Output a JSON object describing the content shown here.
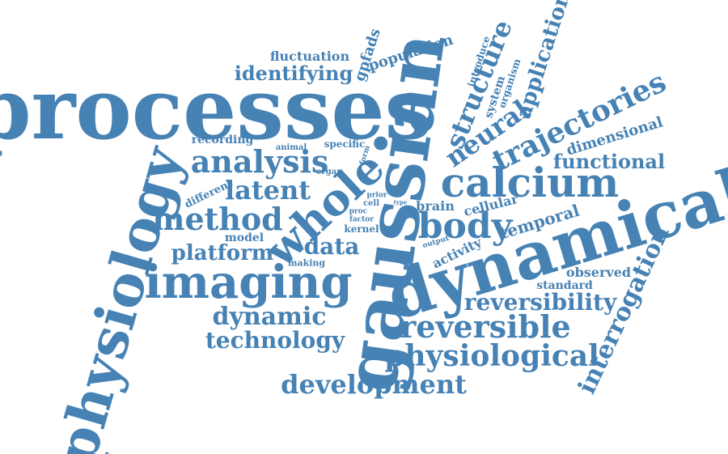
{
  "cloud": {
    "color": "#4682B4",
    "background": "#ffffff",
    "words": [
      {
        "id": "processes",
        "text": "processes"
      },
      {
        "id": "gaussian",
        "text": "gaussian"
      },
      {
        "id": "dynamical",
        "text": "dynamical"
      },
      {
        "id": "physiology",
        "text": "physiology"
      },
      {
        "id": "imaging",
        "text": "imaging"
      },
      {
        "id": "whole",
        "text": "whole"
      },
      {
        "id": "calcium",
        "text": "calcium"
      },
      {
        "id": "body",
        "text": "body"
      },
      {
        "id": "method",
        "text": "method"
      },
      {
        "id": "analysis",
        "text": "analysis"
      },
      {
        "id": "latent",
        "text": "latent"
      },
      {
        "id": "physiological",
        "text": "physiological"
      },
      {
        "id": "reversible",
        "text": "reversible"
      },
      {
        "id": "reversibility",
        "text": "reversibility"
      },
      {
        "id": "development",
        "text": "development"
      },
      {
        "id": "technology",
        "text": "technology"
      },
      {
        "id": "dynamic",
        "text": "dynamic"
      },
      {
        "id": "platform",
        "text": "platform"
      },
      {
        "id": "data",
        "text": "data"
      },
      {
        "id": "interrogation",
        "text": "interrogation"
      },
      {
        "id": "trajectories",
        "text": "trajectories"
      },
      {
        "id": "neural",
        "text": "neural"
      },
      {
        "id": "structure",
        "text": "structure"
      },
      {
        "id": "application",
        "text": "application"
      },
      {
        "id": "functional",
        "text": "functional"
      },
      {
        "id": "dimensional",
        "text": "dimensional"
      },
      {
        "id": "temporal",
        "text": "temporal"
      },
      {
        "id": "identifying",
        "text": "identifying"
      },
      {
        "id": "fluctuation",
        "text": "fluctuation"
      },
      {
        "id": "population",
        "text": "population"
      },
      {
        "id": "gpfads",
        "text": "gpfads"
      },
      {
        "id": "brain",
        "text": "brain"
      },
      {
        "id": "cellular",
        "text": "cellular"
      },
      {
        "id": "activity",
        "text": "activity"
      },
      {
        "id": "observed",
        "text": "observed"
      },
      {
        "id": "standard",
        "text": "standard"
      },
      {
        "id": "system",
        "text": "system"
      },
      {
        "id": "organism",
        "text": "organism"
      },
      {
        "id": "introduce",
        "text": "introduce"
      },
      {
        "id": "recording",
        "text": "recording"
      },
      {
        "id": "specific",
        "text": "specific"
      },
      {
        "id": "animal",
        "text": "animal"
      },
      {
        "id": "form",
        "text": "form"
      },
      {
        "id": "organ",
        "text": "organ"
      },
      {
        "id": "different",
        "text": "different"
      },
      {
        "id": "model",
        "text": "model"
      },
      {
        "id": "kernel",
        "text": "kernel"
      },
      {
        "id": "factor",
        "text": "factor"
      },
      {
        "id": "proc",
        "text": "proc"
      },
      {
        "id": "cell",
        "text": "cell"
      },
      {
        "id": "prior",
        "text": "prior"
      },
      {
        "id": "type",
        "text": "type"
      },
      {
        "id": "making",
        "text": "making"
      },
      {
        "id": "output",
        "text": "output"
      }
    ]
  }
}
